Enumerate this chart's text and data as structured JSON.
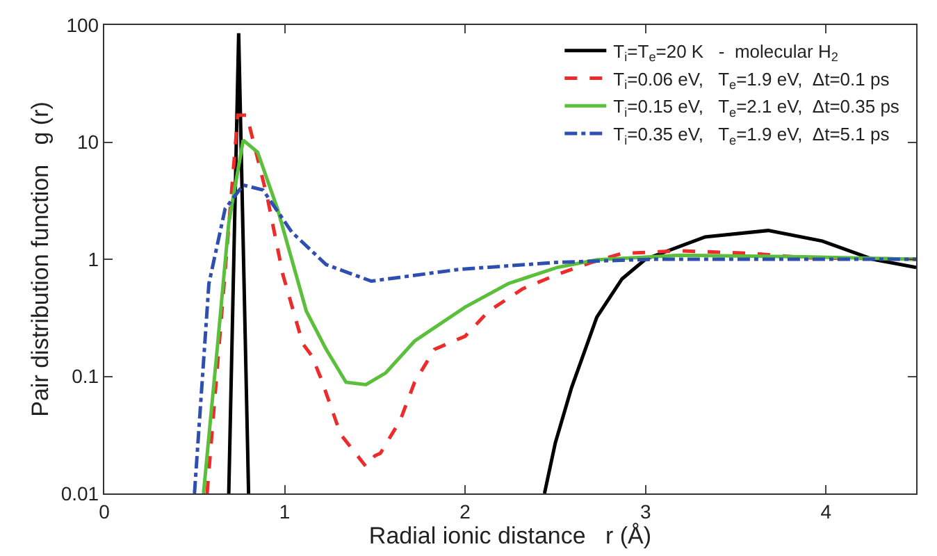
{
  "chart_data": {
    "type": "line",
    "xlabel": "Radial ionic distance   r (Å)",
    "ylabel": "Pair distribution function   g (r)",
    "xlim": [
      0,
      4.5
    ],
    "xticks": [
      0,
      1,
      2,
      3,
      4
    ],
    "ylim": [
      0.01,
      100
    ],
    "yticks": [
      0.01,
      0.1,
      1,
      10,
      100
    ],
    "log": "y",
    "legend": "top right",
    "series": [
      {
        "name": "T$_{i}$=T$_{e}$=20 K   -  molecular H$_{2}$",
        "color": "#000000",
        "line_style": "solid",
        "x": [
          0.69,
          0.745,
          0.8,
          1.6,
          2.44,
          2.5,
          2.59,
          2.73,
          2.87,
          3.0,
          3.33,
          3.68,
          3.98,
          4.26,
          4.5
        ],
        "values": [
          0.01,
          85,
          0.01,
          null,
          0.01,
          0.027,
          0.08,
          0.32,
          0.68,
          1.0,
          1.55,
          1.76,
          1.43,
          1.0,
          0.85
        ]
      },
      {
        "name": "T$_{i}$=0.06 eV,   T$_{e}$=1.9 eV,  Δt=0.1 ps",
        "color": "#ee2b2b",
        "line_style": "dashed",
        "x": [
          0.57,
          0.74,
          0.79,
          0.905,
          0.99,
          1.1,
          1.15,
          1.2,
          1.31,
          1.45,
          1.5,
          1.53,
          1.64,
          1.72,
          1.83,
          2.0,
          2.13,
          2.32,
          2.51,
          2.7,
          2.87,
          3.19,
          3.6,
          3.88,
          4.5
        ],
        "values": [
          0.01,
          17,
          17,
          3.3,
          0.74,
          0.19,
          0.15,
          0.097,
          0.032,
          0.017,
          0.021,
          0.022,
          0.042,
          0.089,
          0.17,
          0.22,
          0.36,
          0.56,
          0.74,
          0.94,
          1.12,
          1.18,
          1.12,
          1.03,
          1.0
        ]
      },
      {
        "name": "T$_{i}$=0.15 eV,   T$_{e}$=2.1 eV,  Δt=0.35 ps",
        "color": "#5bbf3c",
        "line_style": "solid",
        "x": [
          0.55,
          0.63,
          0.69,
          0.77,
          0.85,
          0.96,
          1.12,
          1.23,
          1.34,
          1.45,
          1.56,
          1.72,
          2.0,
          2.24,
          2.51,
          2.73,
          3.19,
          3.88,
          4.5
        ],
        "values": [
          0.01,
          0.2,
          2.05,
          10.4,
          8.2,
          2.7,
          0.36,
          0.17,
          0.089,
          0.085,
          0.107,
          0.2,
          0.39,
          0.62,
          0.85,
          0.99,
          1.08,
          1.05,
          1.0
        ]
      },
      {
        "name": "T$_{i}$=0.35 eV,   T$_{e}$=1.9 eV,  Δt=5.1 ps",
        "color": "#2f4fb0",
        "line_style": "dashdot",
        "x": [
          0.5,
          0.58,
          0.67,
          0.77,
          0.88,
          1.04,
          1.23,
          1.48,
          1.97,
          2.51,
          3.04,
          4.5
        ],
        "values": [
          0.01,
          0.62,
          2.7,
          4.3,
          3.9,
          1.7,
          0.9,
          0.65,
          0.82,
          0.94,
          1.0,
          1.0
        ]
      }
    ]
  }
}
